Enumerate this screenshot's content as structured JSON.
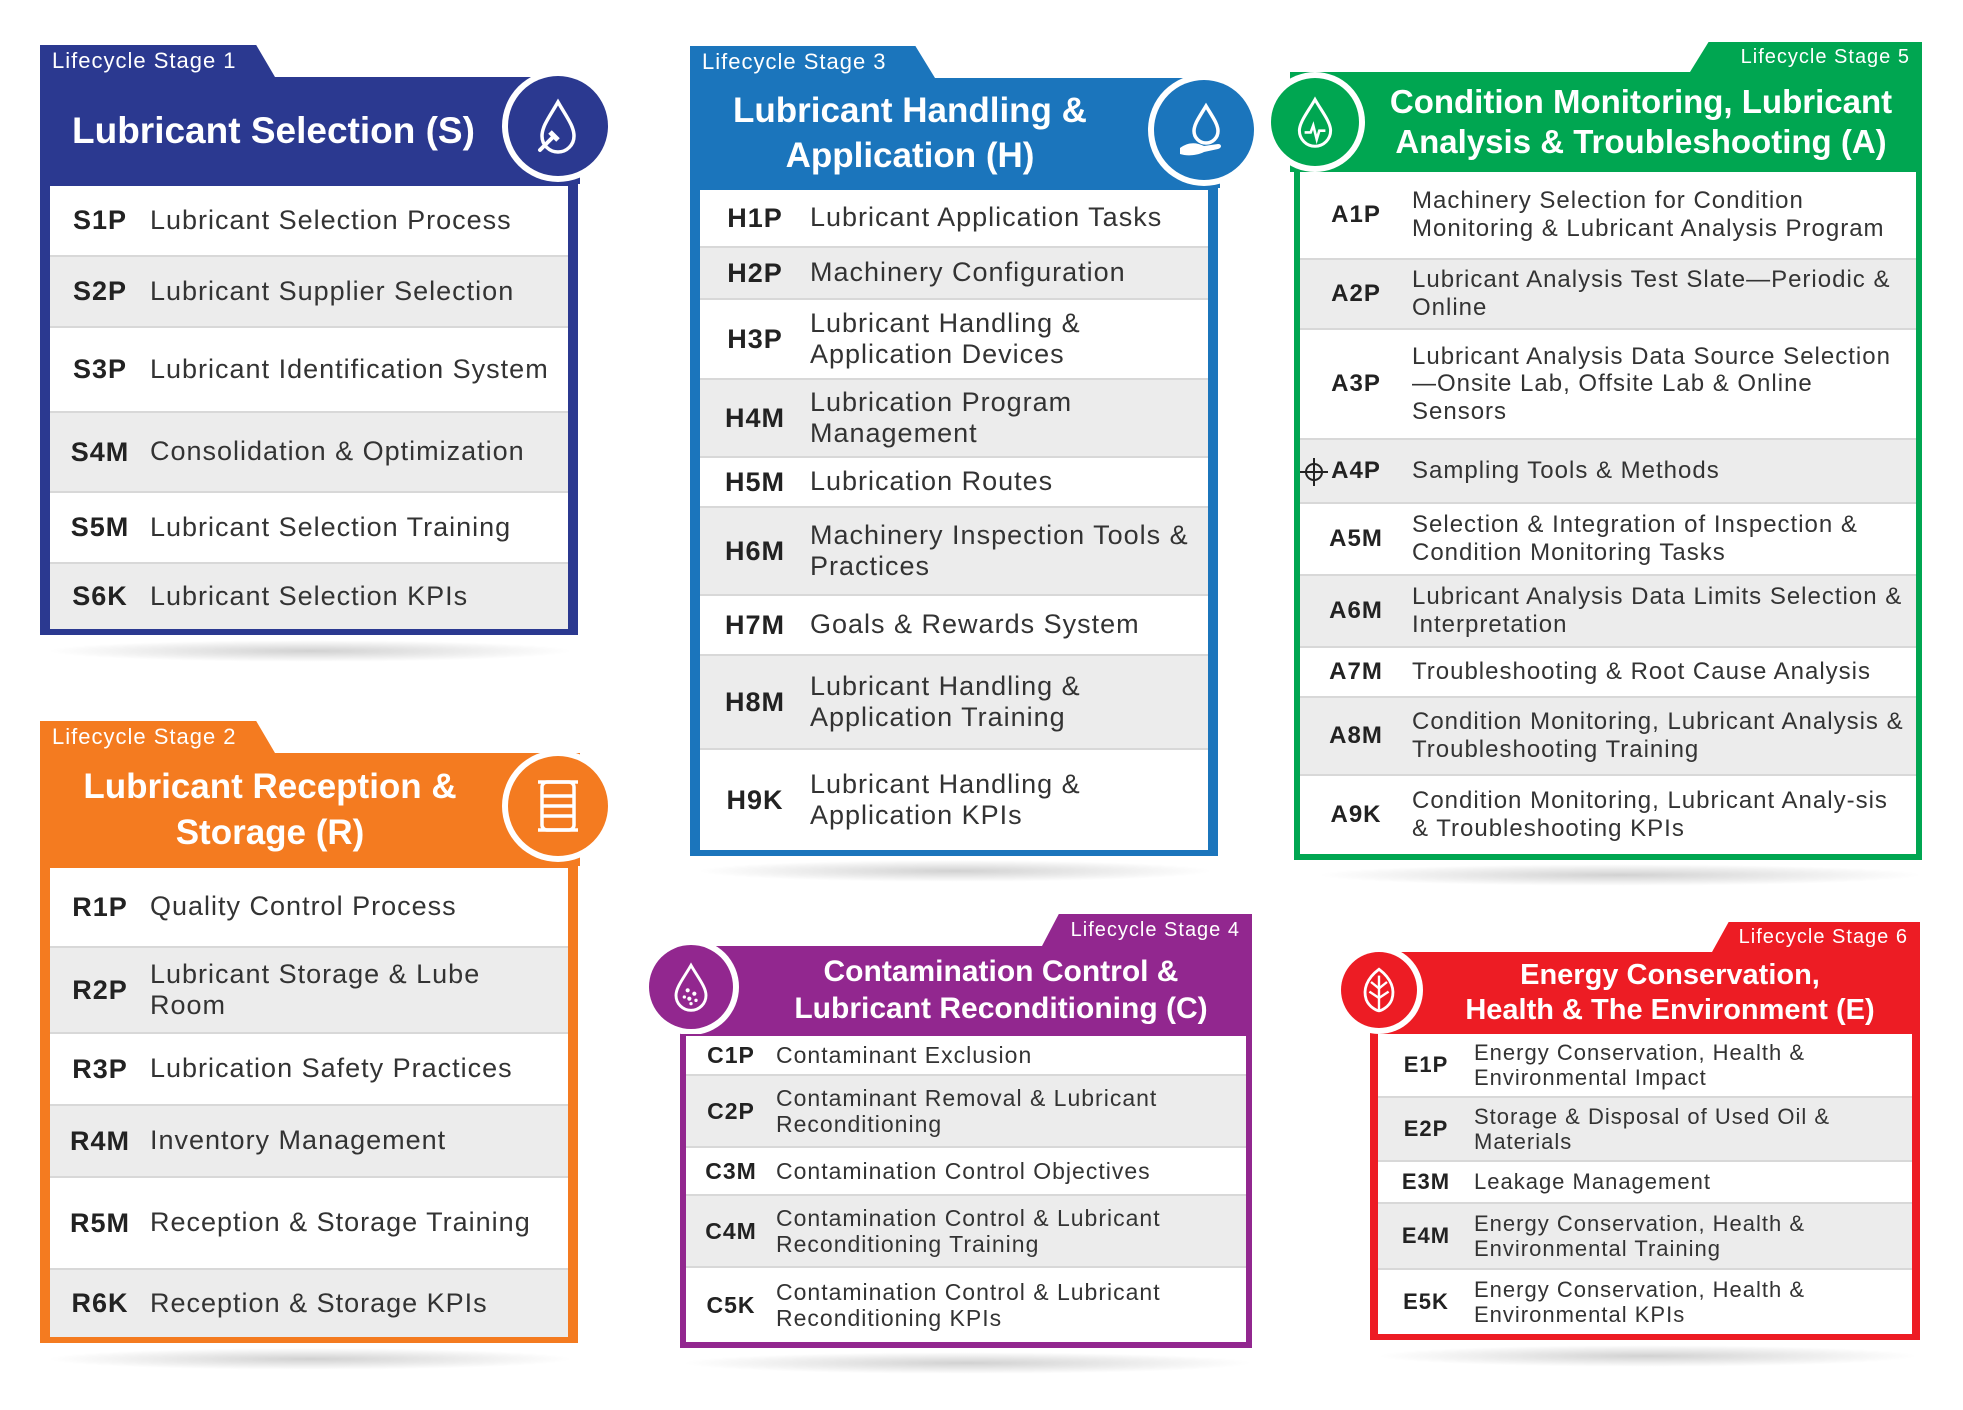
{
  "stages": [
    {
      "id": "s",
      "stage_label": "Lifecycle Stage 1",
      "title": "Lubricant Selection (S)",
      "color": "#2b3990",
      "icon": "drop-with-brush-icon",
      "items": [
        {
          "code": "S1P",
          "label": "Lubricant Selection Process"
        },
        {
          "code": "S2P",
          "label": "Lubricant Supplier Selection"
        },
        {
          "code": "S3P",
          "label": "Lubricant Identification System"
        },
        {
          "code": "S4M",
          "label": "Consolidation & Optimization"
        },
        {
          "code": "S5M",
          "label": "Lubricant Selection Training"
        },
        {
          "code": "S6K",
          "label": "Lubricant Selection KPIs"
        }
      ]
    },
    {
      "id": "r",
      "stage_label": "Lifecycle Stage 2",
      "title_lines": [
        "Lubricant Reception &",
        "Storage (R)"
      ],
      "color": "#f47b20",
      "icon": "barrel-icon",
      "items": [
        {
          "code": "R1P",
          "label": "Quality Control Process"
        },
        {
          "code": "R2P",
          "label": "Lubricant Storage & Lube Room"
        },
        {
          "code": "R3P",
          "label": "Lubrication Safety Practices"
        },
        {
          "code": "R4M",
          "label": "Inventory Management"
        },
        {
          "code": "R5M",
          "label": "Reception & Storage Training"
        },
        {
          "code": "R6K",
          "label": "Reception & Storage KPIs"
        }
      ]
    },
    {
      "id": "h",
      "stage_label": "Lifecycle Stage 3",
      "title_lines": [
        "Lubricant Handling &",
        "Application (H)"
      ],
      "color": "#1b75bc",
      "icon": "hand-drop-icon",
      "items": [
        {
          "code": "H1P",
          "label": "Lubricant Application Tasks"
        },
        {
          "code": "H2P",
          "label": "Machinery Configuration"
        },
        {
          "code": "H3P",
          "label": "Lubricant Handling & Application Devices"
        },
        {
          "code": "H4M",
          "label": "Lubrication Program Management"
        },
        {
          "code": "H5M",
          "label": "Lubrication Routes"
        },
        {
          "code": "H6M",
          "label": "Machinery Inspection Tools & Practices"
        },
        {
          "code": "H7M",
          "label": "Goals & Rewards System"
        },
        {
          "code": "H8M",
          "label": "Lubricant Handling & Application Training"
        },
        {
          "code": "H9K",
          "label": "Lubricant Handling & Application KPIs"
        }
      ]
    },
    {
      "id": "c",
      "stage_label": "Lifecycle Stage 4",
      "title_lines": [
        "Contamination Control &",
        "Lubricant Reconditioning (C)"
      ],
      "color": "#92278f",
      "icon": "dotted-drop-icon",
      "items": [
        {
          "code": "C1P",
          "label": "Contaminant Exclusion"
        },
        {
          "code": "C2P",
          "label": "Contaminant Removal & Lubricant Reconditioning"
        },
        {
          "code": "C3M",
          "label": "Contamination Control Objectives"
        },
        {
          "code": "C4M",
          "label": "Contamination Control & Lubricant Reconditioning Training"
        },
        {
          "code": "C5K",
          "label": "Contamination Control & Lubricant Reconditioning KPIs"
        }
      ]
    },
    {
      "id": "a",
      "stage_label": "Lifecycle Stage 5",
      "title_lines": [
        "Condition Monitoring, Lubricant",
        "Analysis & Troubleshooting (A)"
      ],
      "color": "#00a651",
      "icon": "pulse-drop-icon",
      "items": [
        {
          "code": "A1P",
          "label": "Machinery Selection for Condition Monitoring & Lubricant Analysis Program"
        },
        {
          "code": "A2P",
          "label": "Lubricant Analysis Test Slate—Periodic & Online"
        },
        {
          "code": "A3P",
          "label": "Lubricant Analysis Data Source Selection—Onsite Lab, Offsite Lab & Online Sensors"
        },
        {
          "code": "A4P",
          "label": "Sampling Tools & Methods"
        },
        {
          "code": "A5M",
          "label": "Selection & Integration of Inspection & Condition Monitoring Tasks"
        },
        {
          "code": "A6M",
          "label": "Lubricant Analysis Data Limits Selection & Interpretation"
        },
        {
          "code": "A7M",
          "label": "Troubleshooting & Root Cause Analysis"
        },
        {
          "code": "A8M",
          "label": "Condition Monitoring, Lubricant Analysis & Troubleshooting Training"
        },
        {
          "code": "A9K",
          "label": "Condition Monitoring, Lubricant Analy-sis & Troubleshooting KPIs"
        }
      ]
    },
    {
      "id": "e",
      "stage_label": "Lifecycle Stage  6",
      "title_lines": [
        "Energy Conservation,",
        "Health & The Environment (E)"
      ],
      "color": "#ed1c24",
      "icon": "leaf-icon",
      "items": [
        {
          "code": "E1P",
          "label": "Energy Conservation, Health & Environmental Impact"
        },
        {
          "code": "E2P",
          "label": "Storage & Disposal of Used Oil & Materials"
        },
        {
          "code": "E3M",
          "label": "Leakage Management"
        },
        {
          "code": "E4M",
          "label": "Energy Conservation, Health & Environmental Training"
        },
        {
          "code": "E5K",
          "label": "Energy Conservation, Health & Environmental KPIs"
        }
      ]
    }
  ]
}
